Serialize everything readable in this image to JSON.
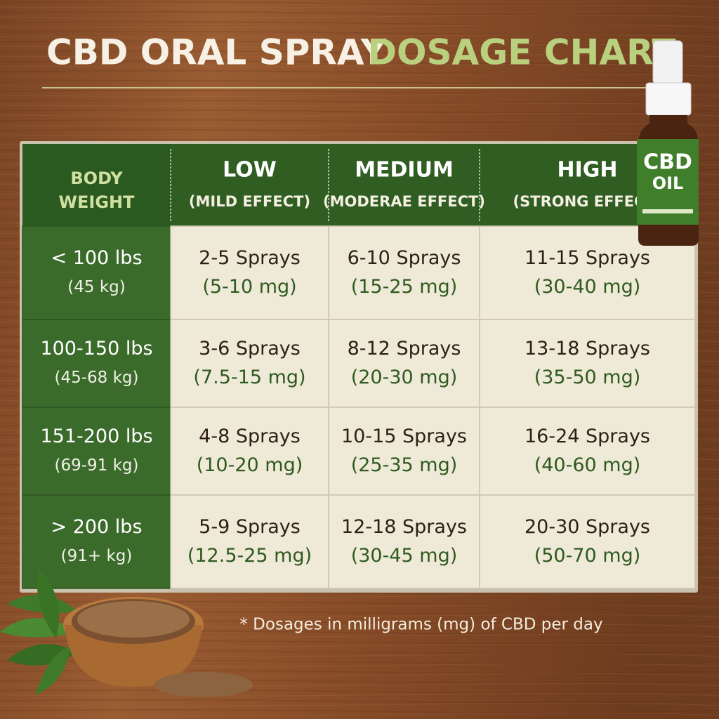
{
  "title": {
    "part1": "CBD ORAL SPRAY",
    "part2": "DOSAGE CHART"
  },
  "table": {
    "header": [
      [
        "BODY",
        "WEIGHT"
      ],
      [
        "LOW",
        "(MILD EFFECT)"
      ],
      [
        "MEDIUM",
        "(MODERAE EFFECT)"
      ],
      [
        "HIGH",
        "(STRONG EFFECT)"
      ]
    ],
    "rows": [
      [
        [
          "< 100 lbs",
          "(45 kg)"
        ],
        [
          "2-5 Sprays",
          "(5-10 mg)"
        ],
        [
          "6-10 Sprays",
          "(15-25 mg)"
        ],
        [
          "11-15 Sprays",
          "(30-40 mg)"
        ]
      ],
      [
        [
          "100-150 lbs",
          "(45-68 kg)"
        ],
        [
          "3-6 Sprays",
          "(7.5-15 mg)"
        ],
        [
          "8-12 Sprays",
          "(20-30 mg)"
        ],
        [
          "13-18 Sprays",
          "(35-50 mg)"
        ]
      ],
      [
        [
          "151-200 lbs",
          "(69-91 kg)"
        ],
        [
          "4-8 Sprays",
          "(10-20 mg)"
        ],
        [
          "10-15 Sprays",
          "(25-35 mg)"
        ],
        [
          "16-24 Sprays",
          "(40-60 mg)"
        ]
      ],
      [
        [
          "> 200 lbs",
          "(91+ kg)"
        ],
        [
          "5-9 Sprays",
          "(12.5-25 mg)"
        ],
        [
          "12-18 Sprays",
          "(30-45 mg)"
        ],
        [
          "20-30 Sprays",
          "(50-70 mg)"
        ]
      ]
    ]
  },
  "footnote": "* Dosages in milligrams (mg) of CBD per day",
  "bottle": {
    "line1": "CBD",
    "line2": "OIL"
  }
}
